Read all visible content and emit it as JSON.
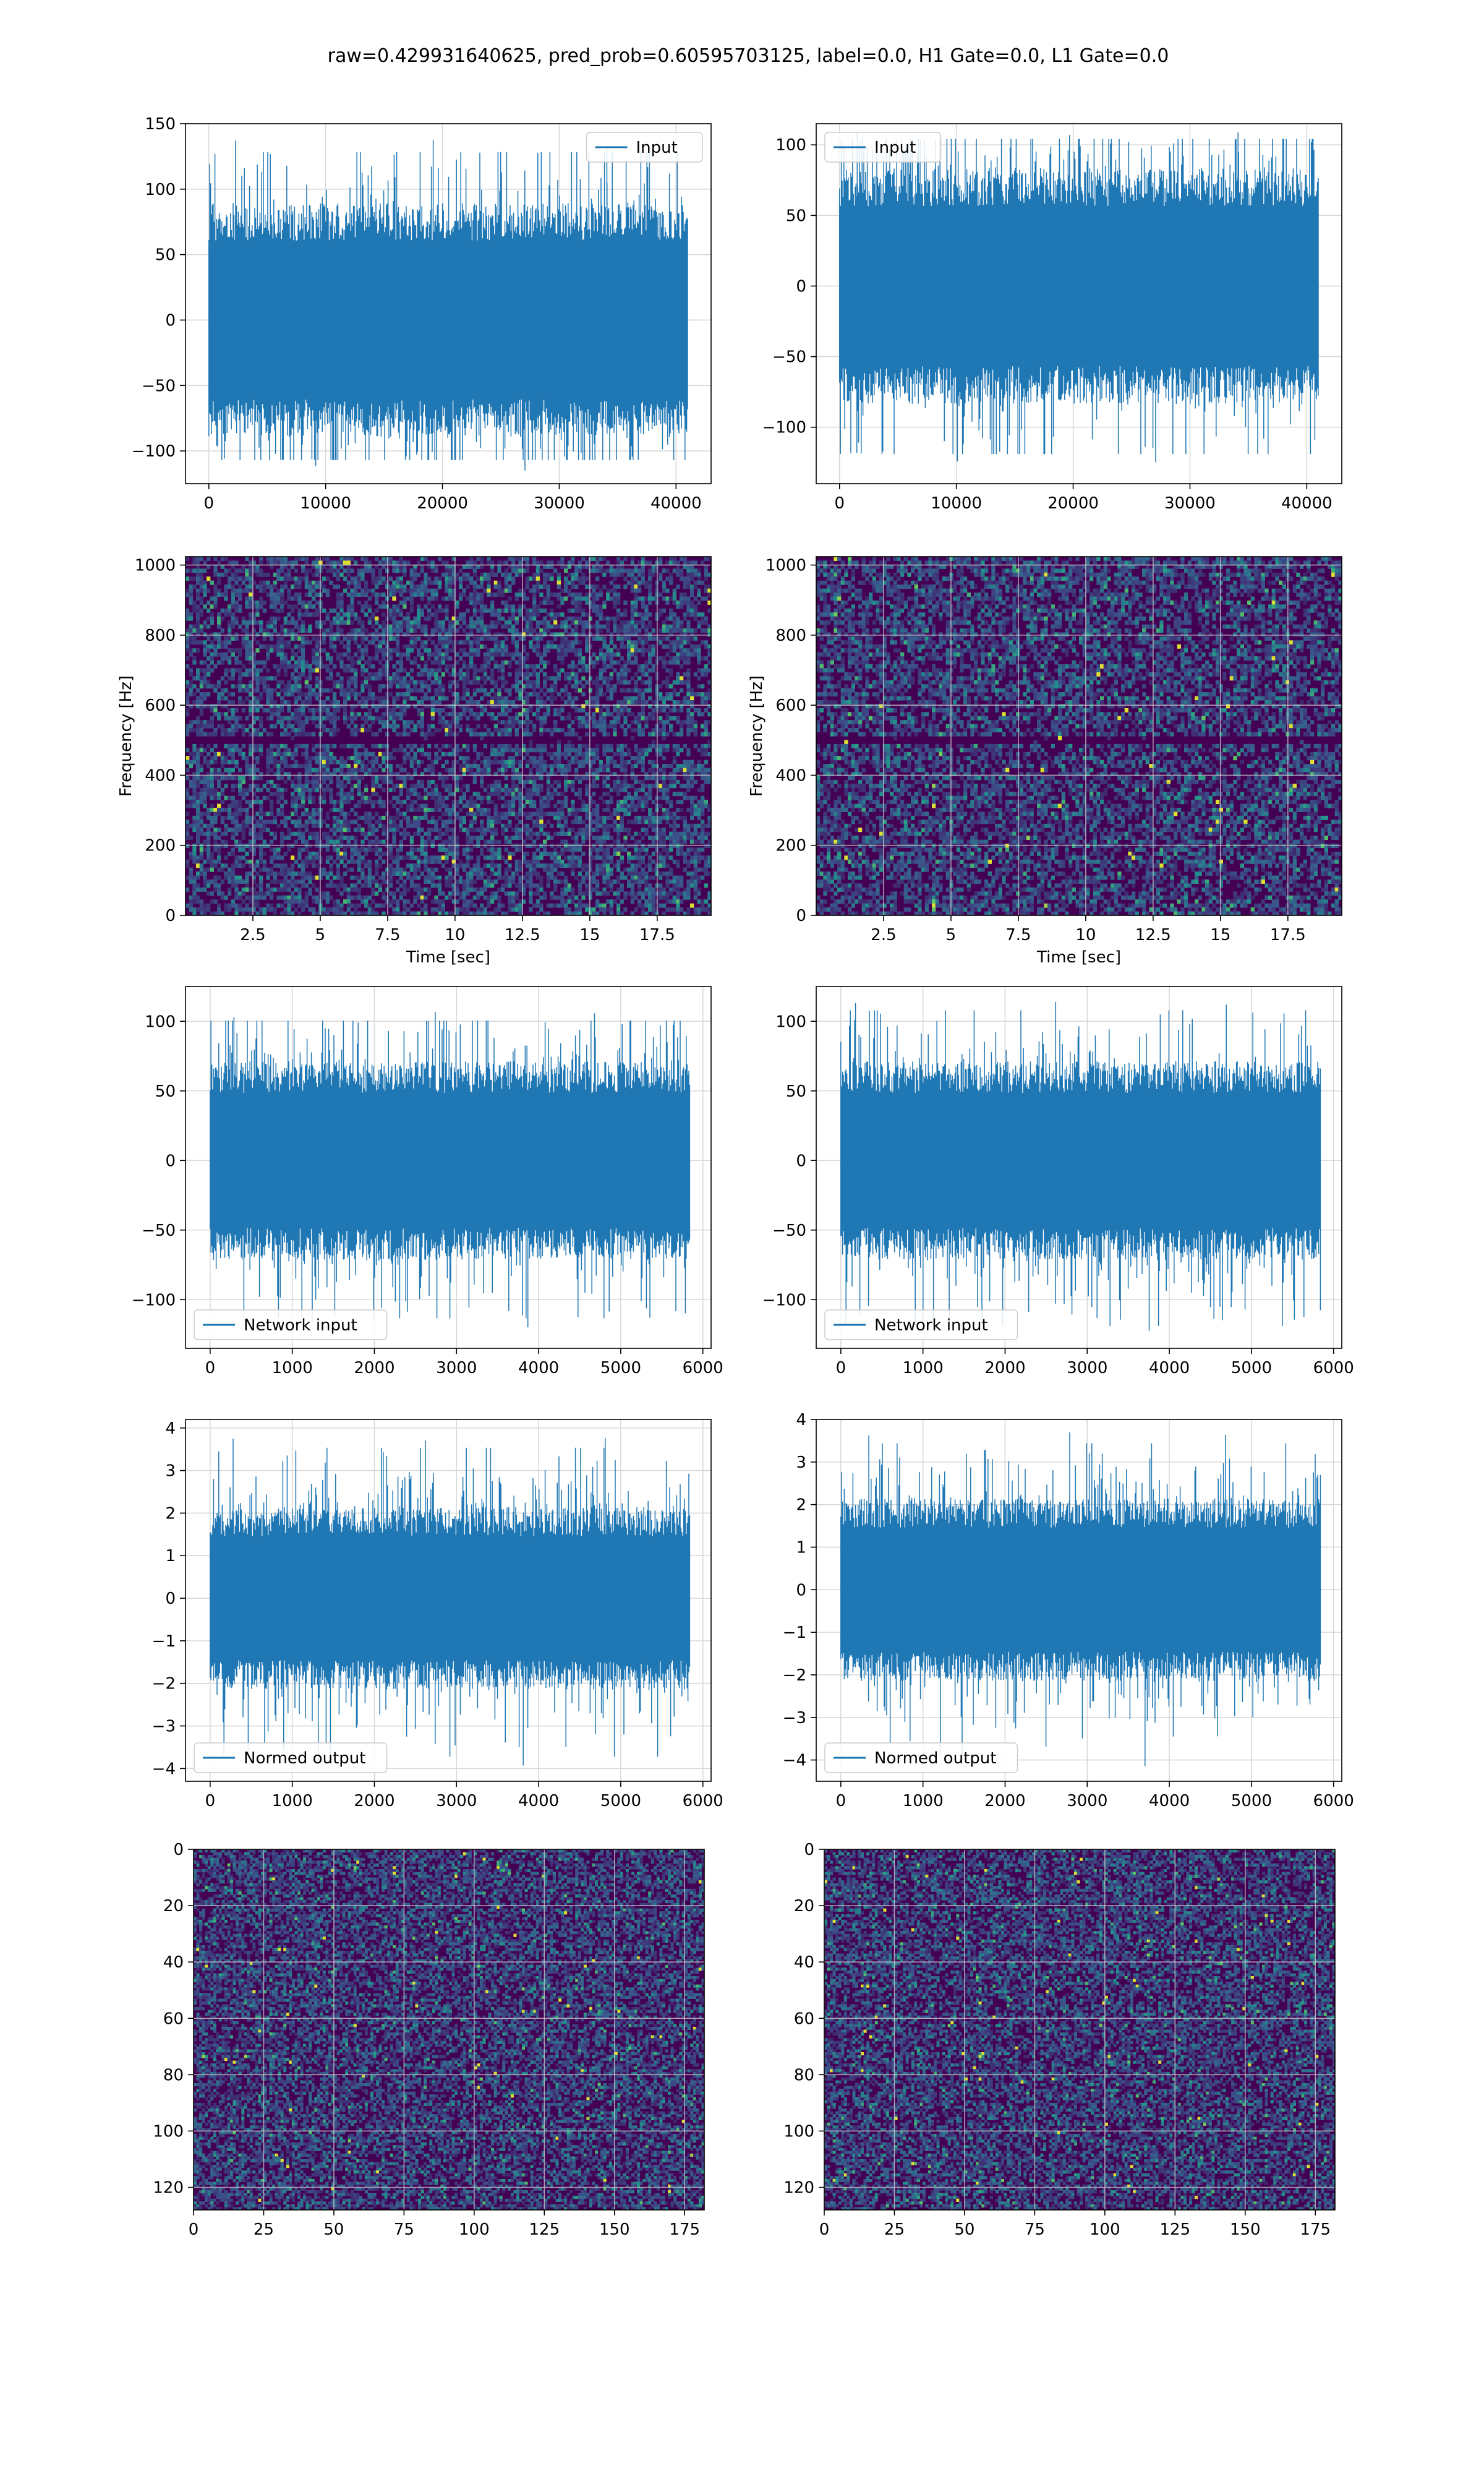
{
  "figure_title": "raw=0.429931640625, pred_prob=0.60595703125, label=0.0, H1 Gate=0.0, L1 Gate=0.0",
  "colors": {
    "line": "#1f77b4",
    "grid": "#d9d9d9",
    "viridis_low": "#440154",
    "viridis_mid": "#21918c",
    "viridis_high": "#fde725"
  },
  "chart_data": [
    {
      "type": "line",
      "panel": "row1-left",
      "legend": "Input",
      "legend_loc": "upper right",
      "xlim": [
        -2000,
        43000
      ],
      "ylim": [
        -125,
        150
      ],
      "xticks": [
        0,
        10000,
        20000,
        30000,
        40000
      ],
      "yticks": [
        -100,
        -50,
        0,
        50,
        100,
        150
      ],
      "n_samples": 41000,
      "envelope": [
        -75,
        75
      ],
      "extremes": [
        -115,
        138
      ],
      "grid": true
    },
    {
      "type": "line",
      "panel": "row1-right",
      "legend": "Input",
      "legend_loc": "upper left",
      "xlim": [
        -2000,
        43000
      ],
      "ylim": [
        -140,
        115
      ],
      "xticks": [
        0,
        10000,
        20000,
        30000,
        40000
      ],
      "yticks": [
        -100,
        -50,
        0,
        50,
        100
      ],
      "n_samples": 41000,
      "envelope": [
        -70,
        70
      ],
      "extremes": [
        -128,
        112
      ],
      "grid": true
    },
    {
      "type": "heatmap",
      "panel": "row2-left",
      "xlabel": "Time [sec]",
      "ylabel": "Frequency [Hz]",
      "xlim": [
        0,
        19.5
      ],
      "ylim": [
        0,
        1024
      ],
      "xticks": [
        2.5,
        5.0,
        7.5,
        10.0,
        12.5,
        15.0,
        17.5
      ],
      "yticks": [
        0,
        200,
        400,
        600,
        800,
        1000
      ],
      "colormap": "viridis",
      "grid": true
    },
    {
      "type": "heatmap",
      "panel": "row2-right",
      "xlabel": "Time [sec]",
      "ylabel": "Frequency [Hz]",
      "xlim": [
        0,
        19.5
      ],
      "ylim": [
        0,
        1024
      ],
      "xticks": [
        2.5,
        5.0,
        7.5,
        10.0,
        12.5,
        15.0,
        17.5
      ],
      "yticks": [
        0,
        200,
        400,
        600,
        800,
        1000
      ],
      "colormap": "viridis",
      "grid": true
    },
    {
      "type": "line",
      "panel": "row3-left",
      "legend": "Network input",
      "legend_loc": "lower left",
      "xlim": [
        -300,
        6100
      ],
      "ylim": [
        -135,
        125
      ],
      "xticks": [
        0,
        1000,
        2000,
        3000,
        4000,
        5000,
        6000
      ],
      "yticks": [
        -100,
        -50,
        0,
        50,
        100
      ],
      "n_samples": 5850,
      "envelope": [
        -60,
        60
      ],
      "extremes": [
        -122,
        108
      ],
      "grid": true
    },
    {
      "type": "line",
      "panel": "row3-right",
      "legend": "Network input",
      "legend_loc": "lower left",
      "xlim": [
        -300,
        6100
      ],
      "ylim": [
        -135,
        125
      ],
      "xticks": [
        0,
        1000,
        2000,
        3000,
        4000,
        5000,
        6000
      ],
      "yticks": [
        -100,
        -50,
        0,
        50,
        100
      ],
      "n_samples": 5850,
      "envelope": [
        -60,
        60
      ],
      "extremes": [
        -128,
        116
      ],
      "grid": true
    },
    {
      "type": "line",
      "panel": "row4-left",
      "legend": "Normed output",
      "legend_loc": "lower left",
      "xlim": [
        -300,
        6100
      ],
      "ylim": [
        -4.3,
        4.2
      ],
      "xticks": [
        0,
        1000,
        2000,
        3000,
        4000,
        5000,
        6000
      ],
      "yticks": [
        -4,
        -3,
        -2,
        -1,
        0,
        1,
        2,
        3,
        4
      ],
      "n_samples": 5850,
      "envelope": [
        -1.8,
        1.8
      ],
      "extremes": [
        -4.0,
        3.8
      ],
      "grid": true
    },
    {
      "type": "line",
      "panel": "row4-right",
      "legend": "Normed output",
      "legend_loc": "lower left",
      "xlim": [
        -300,
        6100
      ],
      "ylim": [
        -4.5,
        4.0
      ],
      "xticks": [
        0,
        1000,
        2000,
        3000,
        4000,
        5000,
        6000
      ],
      "yticks": [
        -4,
        -3,
        -2,
        -1,
        0,
        1,
        2,
        3,
        4
      ],
      "n_samples": 5850,
      "envelope": [
        -1.8,
        1.8
      ],
      "extremes": [
        -4.2,
        3.7
      ],
      "grid": true
    },
    {
      "type": "heatmap",
      "panel": "row5-left",
      "xlim": [
        0,
        182
      ],
      "ylim": [
        0,
        128
      ],
      "y_inverted": true,
      "xticks": [
        0,
        25,
        50,
        75,
        100,
        125,
        150,
        175
      ],
      "yticks": [
        0,
        20,
        40,
        60,
        80,
        100,
        120
      ],
      "colormap": "viridis",
      "grid": true
    },
    {
      "type": "heatmap",
      "panel": "row5-right",
      "xlim": [
        0,
        182
      ],
      "ylim": [
        0,
        128
      ],
      "y_inverted": true,
      "xticks": [
        0,
        25,
        50,
        75,
        100,
        125,
        150,
        175
      ],
      "yticks": [
        0,
        20,
        40,
        60,
        80,
        100,
        120
      ],
      "colormap": "viridis",
      "grid": true
    }
  ]
}
